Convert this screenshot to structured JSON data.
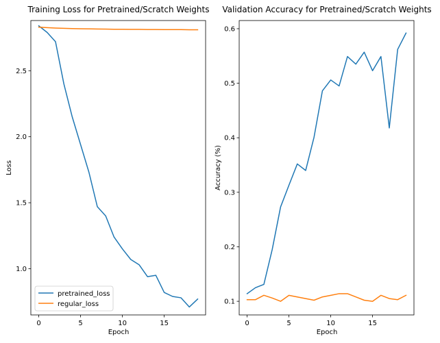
{
  "colors": {
    "pretrained": "#1f77b4",
    "regular": "#ff7f0e"
  },
  "chart_data": [
    {
      "type": "line",
      "title": "Training Loss for Pretrained/Scratch Weights",
      "xlabel": "Epoch",
      "ylabel": "Loss",
      "xlim": [
        -0.95,
        19.95
      ],
      "ylim": [
        0.65,
        2.88
      ],
      "xticks": [
        0,
        5,
        10,
        15
      ],
      "yticks": [
        1.0,
        1.5,
        2.0,
        2.5
      ],
      "ytick_labels": [
        "1.0",
        "1.5",
        "2.0",
        "2.5"
      ],
      "grid": false,
      "legend": "lower-left",
      "x": [
        0,
        1,
        2,
        3,
        4,
        5,
        6,
        7,
        8,
        9,
        10,
        11,
        12,
        13,
        14,
        15,
        16,
        17,
        18,
        19
      ],
      "series": [
        {
          "name": "pretrained_loss",
          "values": [
            2.84,
            2.79,
            2.72,
            2.4,
            2.15,
            1.94,
            1.73,
            1.47,
            1.4,
            1.24,
            1.15,
            1.07,
            1.03,
            0.94,
            0.95,
            0.82,
            0.79,
            0.78,
            0.71,
            0.77
          ]
        },
        {
          "name": "regular_loss",
          "values": [
            2.83,
            2.826,
            2.823,
            2.821,
            2.819,
            2.818,
            2.817,
            2.816,
            2.815,
            2.814,
            2.814,
            2.813,
            2.813,
            2.812,
            2.812,
            2.811,
            2.811,
            2.811,
            2.81,
            2.81
          ]
        }
      ]
    },
    {
      "type": "line",
      "title": "Validation Accuracy for Pretrained/Scratch Weights",
      "xlabel": "Epoch",
      "ylabel": "Accuracy (%)",
      "xlim": [
        -0.95,
        19.95
      ],
      "ylim": [
        0.075,
        0.615
      ],
      "xticks": [
        0,
        5,
        10,
        15
      ],
      "yticks": [
        0.1,
        0.2,
        0.3,
        0.4,
        0.5,
        0.6
      ],
      "ytick_labels": [
        "0.1",
        "0.2",
        "0.3",
        "0.4",
        "0.5",
        "0.6"
      ],
      "grid": false,
      "x": [
        0,
        1,
        2,
        3,
        4,
        5,
        6,
        7,
        8,
        9,
        10,
        11,
        12,
        13,
        14,
        15,
        16,
        17,
        18,
        19
      ],
      "series": [
        {
          "name": "pretrained_loss",
          "values": [
            0.114,
            0.125,
            0.131,
            0.195,
            0.273,
            0.313,
            0.352,
            0.34,
            0.401,
            0.486,
            0.506,
            0.495,
            0.549,
            0.535,
            0.557,
            0.523,
            0.549,
            0.418,
            0.562,
            0.592
          ]
        },
        {
          "name": "regular_loss",
          "values": [
            0.103,
            0.103,
            0.111,
            0.106,
            0.1,
            0.111,
            0.108,
            0.105,
            0.102,
            0.108,
            0.111,
            0.114,
            0.114,
            0.108,
            0.102,
            0.1,
            0.111,
            0.105,
            0.103,
            0.111
          ]
        }
      ]
    }
  ]
}
